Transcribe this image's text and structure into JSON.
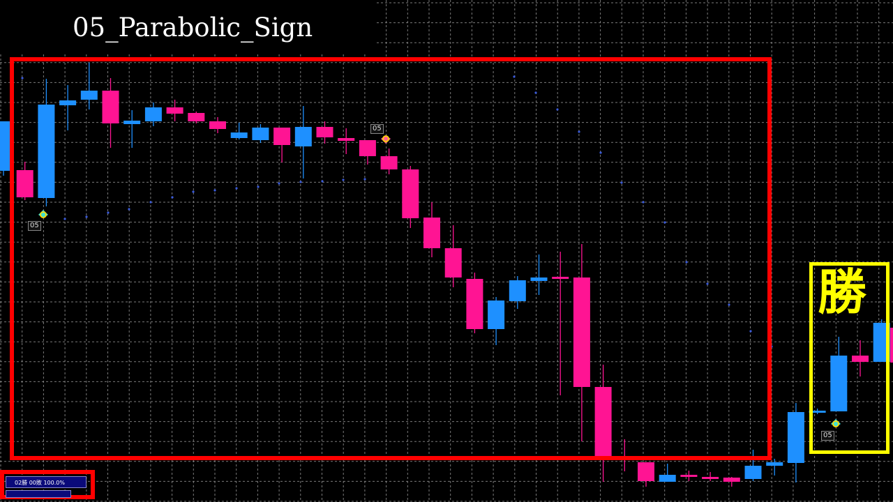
{
  "title": "05_Parabolic_Sign",
  "result_label": "勝",
  "stats": {
    "text": "02勝 00敗 100.0%"
  },
  "signals": [
    {
      "label": "05",
      "direction": "buy"
    },
    {
      "label": "05",
      "direction": "sell"
    },
    {
      "label": "05",
      "direction": "buy"
    }
  ],
  "colors": {
    "bull": "#1e90ff",
    "bear": "#ff1493",
    "grid": "#9a9a9a",
    "highlight_frame": "#ff0000",
    "win_frame": "#ffff00",
    "psar_dots": "#3b5bdb"
  }
}
